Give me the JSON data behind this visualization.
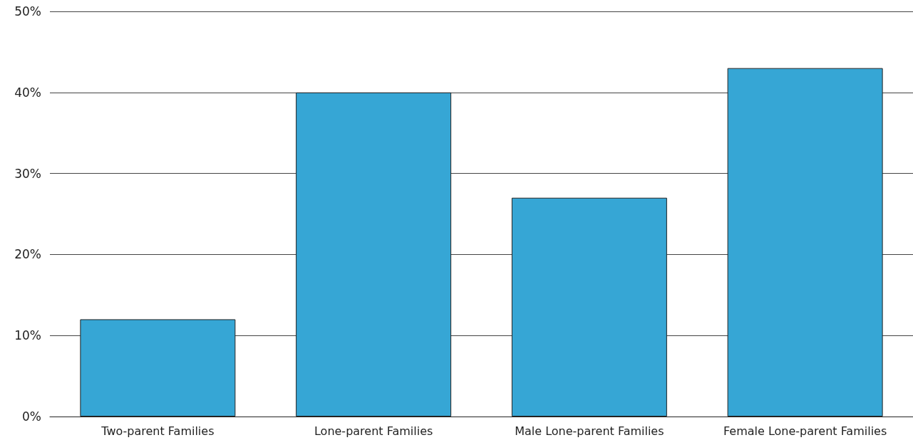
{
  "chart_data": {
    "type": "bar",
    "categories": [
      "Two-parent Families",
      "Lone-parent Families",
      "Male Lone-parent Families",
      "Female Lone-parent Families"
    ],
    "values": [
      12,
      40,
      27,
      43
    ],
    "color": "#36a6d5",
    "ylim": [
      0,
      50
    ],
    "yticks": [
      {
        "value": 0,
        "label": "0%"
      },
      {
        "value": 10,
        "label": "10%"
      },
      {
        "value": 20,
        "label": "20%"
      },
      {
        "value": 30,
        "label": "30%"
      },
      {
        "value": 40,
        "label": "40%"
      },
      {
        "value": 50,
        "label": "50%"
      }
    ],
    "grid": "y"
  }
}
